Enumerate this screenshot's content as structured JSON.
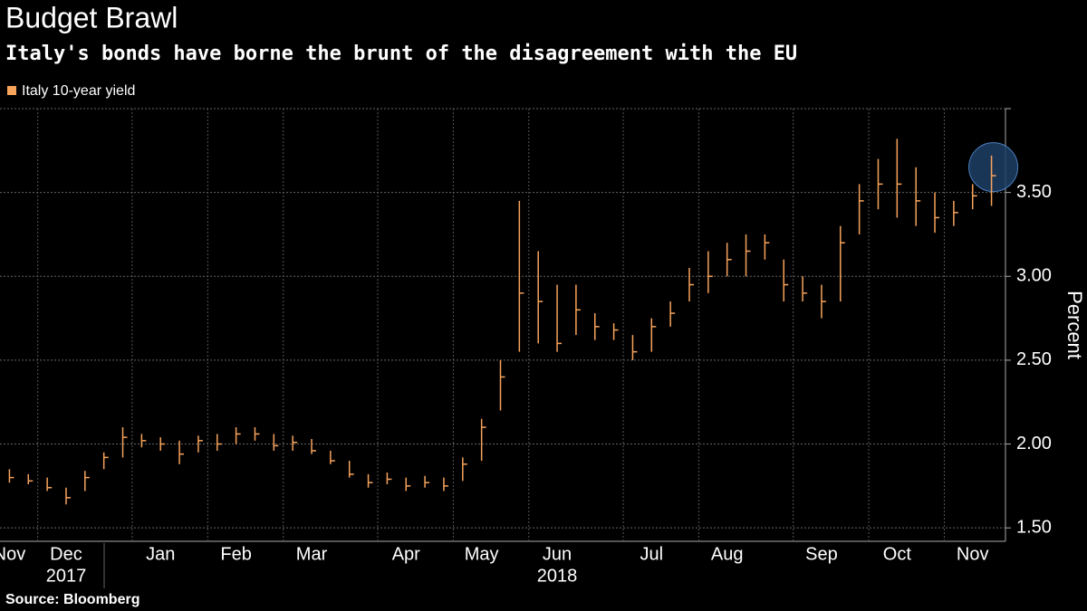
{
  "chart_data": {
    "type": "range-bar",
    "title": "Budget Brawl",
    "subtitle": "Italy's bonds have borne the brunt of the disagreement with the EU",
    "y_label": "Percent",
    "source": "Source: Bloomberg",
    "categories": [
      "Nov",
      null,
      null,
      "Dec",
      null,
      null,
      null,
      null,
      "Jan",
      null,
      null,
      null,
      "Feb",
      null,
      null,
      null,
      "Mar",
      null,
      null,
      null,
      null,
      "Apr",
      null,
      null,
      null,
      "May",
      null,
      null,
      null,
      "Jun",
      null,
      null,
      null,
      null,
      "Jul",
      null,
      null,
      null,
      "Aug",
      null,
      null,
      null,
      null,
      "Sep",
      null,
      null,
      null,
      "Oct",
      null,
      null,
      null,
      "Nov",
      null
    ],
    "category_years": [
      null,
      null,
      null,
      "2017",
      null,
      null,
      null,
      null,
      null,
      null,
      null,
      null,
      null,
      null,
      null,
      null,
      null,
      null,
      null,
      null,
      null,
      null,
      null,
      null,
      null,
      null,
      null,
      null,
      null,
      "2018",
      null,
      null,
      null,
      null,
      null,
      null,
      null,
      null,
      null,
      null,
      null,
      null,
      null,
      null,
      null,
      null,
      null,
      null,
      null,
      null,
      null,
      null,
      null
    ],
    "series": [
      {
        "name": "Italy 10-year yield",
        "color": "#f7a35c",
        "low": [
          1.77,
          1.76,
          1.72,
          1.64,
          1.72,
          1.85,
          1.92,
          1.98,
          1.96,
          1.88,
          1.95,
          1.96,
          2.0,
          2.02,
          1.96,
          1.96,
          1.94,
          1.88,
          1.8,
          1.74,
          1.76,
          1.72,
          1.74,
          1.72,
          1.78,
          1.9,
          2.2,
          2.55,
          2.6,
          2.55,
          2.65,
          2.62,
          2.62,
          2.5,
          2.55,
          2.7,
          2.85,
          2.9,
          3.0,
          3.0,
          3.1,
          2.85,
          2.85,
          2.75,
          2.85,
          3.25,
          3.4,
          3.35,
          3.3,
          3.26,
          3.3,
          3.4,
          3.42
        ],
        "high": [
          1.85,
          1.82,
          1.8,
          1.74,
          1.84,
          1.95,
          2.1,
          2.06,
          2.04,
          2.02,
          2.05,
          2.06,
          2.1,
          2.1,
          2.06,
          2.05,
          2.03,
          1.96,
          1.9,
          1.82,
          1.83,
          1.8,
          1.81,
          1.8,
          1.92,
          2.15,
          2.5,
          3.45,
          3.15,
          2.95,
          2.95,
          2.78,
          2.72,
          2.65,
          2.75,
          2.85,
          3.05,
          3.15,
          3.2,
          3.25,
          3.25,
          3.1,
          3.0,
          2.95,
          3.3,
          3.55,
          3.7,
          3.82,
          3.65,
          3.5,
          3.45,
          3.55,
          3.72
        ],
        "values": [
          1.8,
          1.78,
          1.74,
          1.68,
          1.8,
          1.92,
          2.04,
          2.02,
          2.0,
          1.94,
          2.02,
          2.0,
          2.06,
          2.06,
          1.99,
          2.01,
          1.96,
          1.9,
          1.82,
          1.77,
          1.79,
          1.75,
          1.77,
          1.75,
          1.88,
          2.1,
          2.4,
          2.9,
          2.85,
          2.6,
          2.8,
          2.7,
          2.68,
          2.55,
          2.7,
          2.78,
          2.95,
          3.0,
          3.1,
          3.15,
          3.2,
          2.95,
          2.9,
          2.85,
          3.2,
          3.45,
          3.55,
          3.55,
          3.45,
          3.35,
          3.38,
          3.48,
          3.6
        ]
      }
    ],
    "ylim": [
      1.42,
      4.0
    ],
    "yticks": [
      {
        "value": 1.5,
        "label": "1.50"
      },
      {
        "value": 2.0,
        "label": "2.00"
      },
      {
        "value": 2.5,
        "label": "2.50"
      },
      {
        "value": 3.0,
        "label": "3.00"
      },
      {
        "value": 3.5,
        "label": "3.50"
      }
    ],
    "grid": true,
    "highlight_last": true,
    "highlight_color": "#1f3f66"
  }
}
